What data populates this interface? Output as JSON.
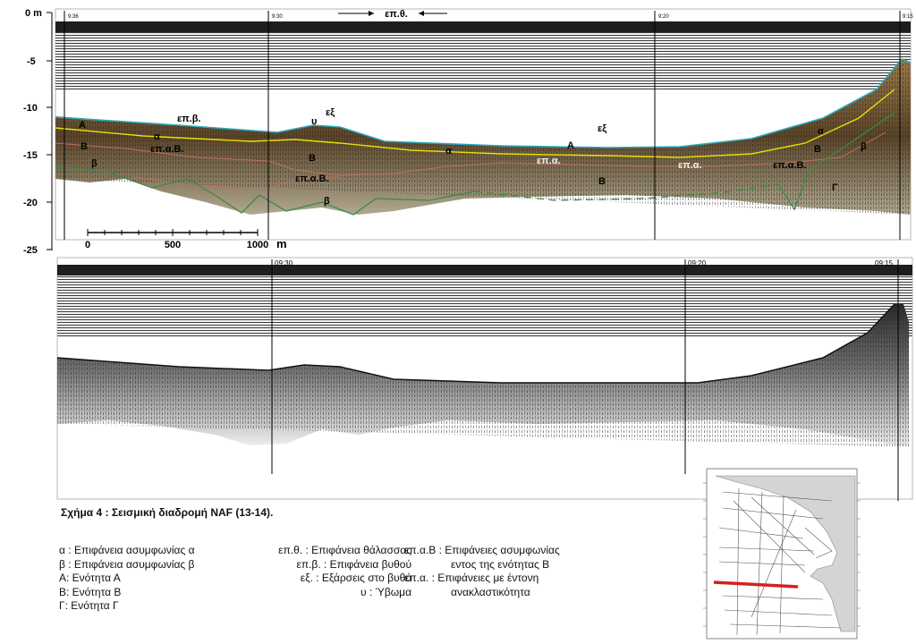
{
  "figure": {
    "caption": "Σχήμα 4 : Σεισμική διαδρομή NAF (13-14).",
    "depth_axis": {
      "top_label": "0 m",
      "ticks": [
        "-5",
        "-10",
        "-15",
        "-20",
        "-25"
      ]
    },
    "top_profile": {
      "title_arrow_label": "επ.θ.",
      "time_marks": [
        "9:36",
        "9:30",
        "9:20",
        "9:15"
      ],
      "scale_bar": {
        "ticks": [
          "0",
          "500",
          "1000"
        ],
        "unit": "m"
      },
      "annotations": {
        "unit_A_left": "Α",
        "alpha_left": "α",
        "unit_B_left": "Β",
        "beta_left": "β",
        "sea_floor": "επ.β.",
        "epaB_left": "επ.α.Β.",
        "upsilon": "υ",
        "exarsi_1": "εξ",
        "unit_B_center": "Β",
        "epaB_center": "επ.α.Β.",
        "beta_center": "β",
        "alpha_center": "α",
        "unit_A_center": "Α",
        "exarsi_2": "εξ",
        "epa_center": "επ.α.",
        "unit_B_right_lower": "Β",
        "epa_right": "επ.α.",
        "epaB_right": "επ.α.Β.",
        "unit_B_right": "Β",
        "alpha_right": "α",
        "beta_right": "β",
        "unit_G": "Γ"
      }
    },
    "bottom_profile": {
      "time_marks": [
        "09:30",
        "09:20",
        "09:15"
      ]
    },
    "legend": {
      "column_1": [
        "α : Επιφάνεια ασυμφωνίας α",
        "β : Επιφάνεια ασυμφωνίας β",
        "Α: Ενότητα Α",
        "Β: Ενότητα Β",
        "Γ: Ενότητα Γ"
      ],
      "column_2": [
        "επ.θ. : Επιφάνεια θάλασσας",
        "επ.β. : Επιφάνεια βυθού",
        "εξ. : Εξάρσεις στο βυθό",
        "υ : Ύβωμα"
      ],
      "column_3": [
        "επ.α.Β : Επιφάνειες ασυμφωνίας",
        "εντος της ενότητας Β",
        "επ.α. : Επιφάνειες με έντονη",
        "ανακλαστικότητα"
      ]
    },
    "colors": {
      "sea_surface_line": "#2aa8b8",
      "alpha_line": "#e8e000",
      "unconformity_B_line": "#c07060",
      "beta_line": "#3a8a4a",
      "track_line": "#d42020",
      "record_background": "#1a1a1a"
    }
  }
}
